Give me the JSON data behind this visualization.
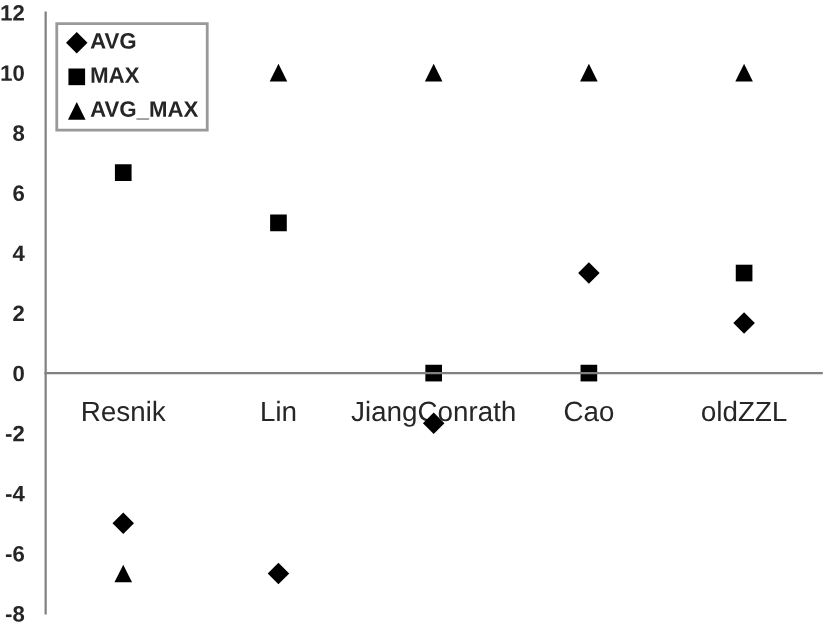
{
  "chart_data": {
    "type": "scatter",
    "categories": [
      "Resnik",
      "Lin",
      "JiangConrath",
      "Cao",
      "oldZZL"
    ],
    "series": [
      {
        "name": "AVG",
        "color": "#000000",
        "marker": "diamond",
        "values": [
          -5,
          -6.67,
          -1.67,
          3.33,
          1.67
        ]
      },
      {
        "name": "MAX",
        "color": "#000000",
        "marker": "square",
        "values": [
          6.67,
          5,
          0,
          0,
          3.33
        ]
      },
      {
        "name": "AVG_MAX",
        "color": "#000000",
        "marker": "triangle",
        "values": [
          -6.67,
          10,
          10,
          10,
          10
        ]
      }
    ],
    "ylim": [
      -8,
      12
    ],
    "yticks": [
      -8,
      -6,
      -4,
      -2,
      0,
      2,
      4,
      6,
      8,
      10,
      12
    ],
    "grid": false,
    "legend": "top left"
  }
}
